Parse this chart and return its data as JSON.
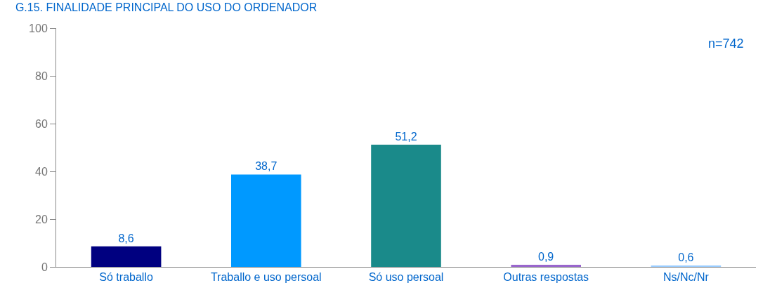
{
  "chart_data": {
    "type": "bar",
    "title": "G.15. FINALIDADE PRINCIPAL DO USO DO ORDENADOR",
    "categories": [
      "Só traballo",
      "Traballo e uso persoal",
      "Só uso persoal",
      "Outras respostas",
      "Ns/Nc/Nr"
    ],
    "values": [
      8.6,
      38.7,
      51.2,
      0.9,
      0.6
    ],
    "colors": [
      "#000080",
      "#0099ff",
      "#1a8a8a",
      "#9966cc",
      "#99ccff"
    ],
    "value_labels": [
      "8,6",
      "38,7",
      "51,2",
      "0,9",
      "0,6"
    ],
    "ylim": [
      0,
      100
    ],
    "yticks": [
      0,
      20,
      40,
      60,
      80,
      100
    ],
    "annotations": [
      "n=742"
    ]
  }
}
